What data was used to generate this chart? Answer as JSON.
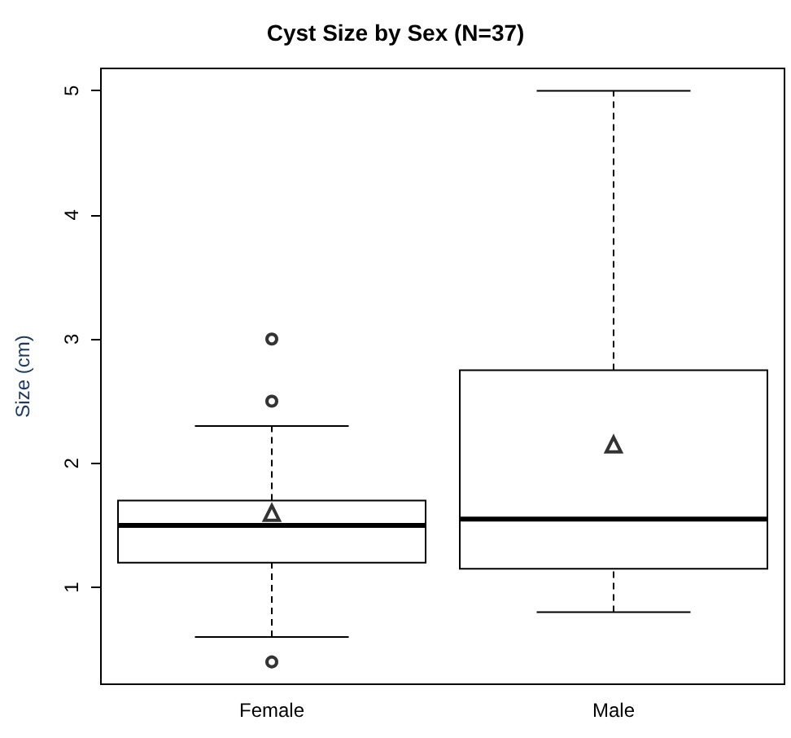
{
  "chart_data": {
    "type": "box",
    "title": "Cyst Size by Sex (N=37)",
    "ylabel": "Size (cm)",
    "categories": [
      "Female",
      "Male"
    ],
    "boxes": [
      {
        "low": 0.6,
        "q1": 1.2,
        "median": 1.5,
        "q3": 1.7,
        "high": 2.3,
        "mean": 1.6,
        "outliers": [
          0.4,
          2.5,
          3.0
        ]
      },
      {
        "low": 0.8,
        "q1": 1.15,
        "median": 1.55,
        "q3": 2.75,
        "high": 5,
        "mean": 2.15
      }
    ],
    "ylim": [
      0.22,
      5.18
    ],
    "yticks": [
      1,
      2,
      3,
      4,
      5
    ],
    "grid": false
  }
}
